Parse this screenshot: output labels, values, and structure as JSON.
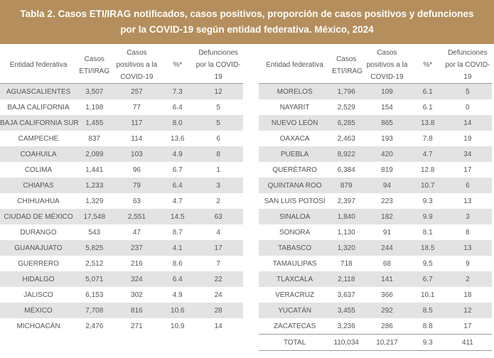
{
  "header": {
    "title_lines": [
      "Tabla 2. Casos ETI/IRAG notificados, casos positivos, proporción de casos positivos  y defunciones",
      "por la COVID-19 según entidad federativa. México, 2024"
    ]
  },
  "tables": [
    {
      "columns": [
        "Entidad federativa",
        "Casos ETI/IRAG",
        "Casos positivos a la COVID-19",
        "%*",
        "Defunciones por la COVID-19"
      ],
      "rows": [
        [
          "AGUASCALIENTES",
          "3,507",
          "257",
          "7.3",
          "12"
        ],
        [
          "BAJA CALIFORNIA",
          "1,198",
          "77",
          "6.4",
          "5"
        ],
        [
          "BAJA CALIFORNIA SUR",
          "1,455",
          "117",
          "8.0",
          "5"
        ],
        [
          "CAMPECHE",
          "837",
          "114",
          "13.6",
          "6"
        ],
        [
          "COAHUILA",
          "2,089",
          "103",
          "4.9",
          "8"
        ],
        [
          "COLIMA",
          "1,441",
          "96",
          "6.7",
          "1"
        ],
        [
          "CHIAPAS",
          "1,233",
          "79",
          "6.4",
          "3"
        ],
        [
          "CHIHUAHUA",
          "1,329",
          "63",
          "4.7",
          "2"
        ],
        [
          "CIUDAD DE MÉXICO",
          "17,548",
          "2,551",
          "14.5",
          "63"
        ],
        [
          "DURANGO",
          "543",
          "47",
          "8.7",
          "4"
        ],
        [
          "GUANAJUATO",
          "5,825",
          "237",
          "4.1",
          "17"
        ],
        [
          "GUERRERO",
          "2,512",
          "216",
          "8.6",
          "7"
        ],
        [
          "HIDALGO",
          "5,071",
          "324",
          "6.4",
          "22"
        ],
        [
          "JALISCO",
          "6,153",
          "302",
          "4.9",
          "24"
        ],
        [
          "MÉXICO",
          "7,708",
          "816",
          "10.6",
          "28"
        ],
        [
          "MICHOACÁN",
          "2,476",
          "271",
          "10.9",
          "14"
        ]
      ]
    },
    {
      "columns": [
        "Entidad federativa",
        "Casos ETI/IRAG",
        "Casos positivos a la COVID-19",
        "%*",
        "Defunciones por la COVID-19"
      ],
      "rows": [
        [
          "MORELOS",
          "1,796",
          "109",
          "6.1",
          "5"
        ],
        [
          "NAYARIT",
          "2,529",
          "154",
          "6.1",
          "0"
        ],
        [
          "NUEVO LEÓN",
          "6,285",
          "865",
          "13.8",
          "14"
        ],
        [
          "OAXACA",
          "2,463",
          "193",
          "7.8",
          "19"
        ],
        [
          "PUEBLA",
          "8,922",
          "420",
          "4.7",
          "34"
        ],
        [
          "QUERÉTARO",
          "6,384",
          "819",
          "12.8",
          "17"
        ],
        [
          "QUINTANA ROO",
          "879",
          "94",
          "10.7",
          "6"
        ],
        [
          "SAN LUIS POTOSÍ",
          "2,397",
          "223",
          "9.3",
          "13"
        ],
        [
          "SINALOA",
          "1,840",
          "182",
          "9.9",
          "3"
        ],
        [
          "SONORA",
          "1,130",
          "91",
          "8.1",
          "8"
        ],
        [
          "TABASCO",
          "1,320",
          "244",
          "18.5",
          "13"
        ],
        [
          "TAMAULIPAS",
          "718",
          "68",
          "9.5",
          "9"
        ],
        [
          "TLAXCALA",
          "2,118",
          "141",
          "6.7",
          "2"
        ],
        [
          "VERACRUZ",
          "3,637",
          "366",
          "10.1",
          "18"
        ],
        [
          "YUCATÁN",
          "3,455",
          "292",
          "8.5",
          "12"
        ],
        [
          "ZACATECAS",
          "3,236",
          "286",
          "8.8",
          "17"
        ],
        [
          "TOTAL",
          "110,034",
          "10,217",
          "9.3",
          "411"
        ]
      ]
    }
  ]
}
